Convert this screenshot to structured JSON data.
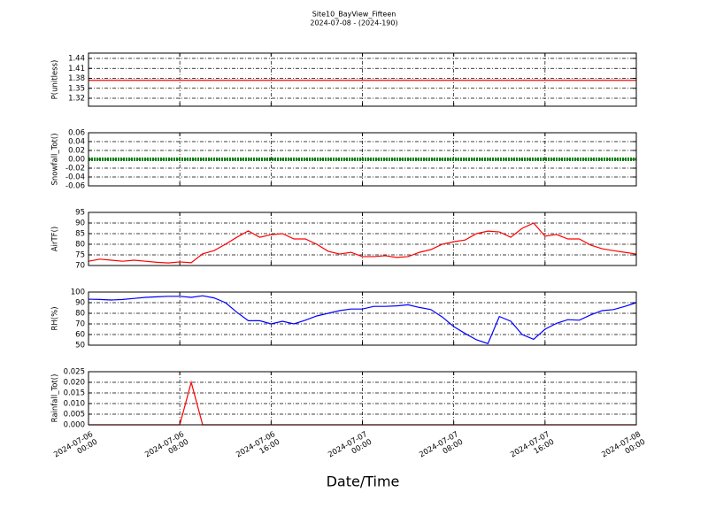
{
  "chart_data": [
    {
      "type": "line",
      "title": "Site10_BayView_Fifteen",
      "subtitle": "2024-07-08 - (2024-190)",
      "ylabel": "P(unitless)",
      "color": "#ff0000",
      "grid": true,
      "x": [
        "2024-07-06 00:00",
        "2024-07-06 01:00",
        "2024-07-06 02:00",
        "2024-07-06 03:00",
        "2024-07-06 04:00",
        "2024-07-06 05:00",
        "2024-07-06 06:00",
        "2024-07-06 07:00",
        "2024-07-06 08:00",
        "2024-07-06 09:00",
        "2024-07-06 10:00",
        "2024-07-06 11:00",
        "2024-07-06 12:00",
        "2024-07-06 13:00",
        "2024-07-06 14:00",
        "2024-07-06 15:00",
        "2024-07-06 16:00",
        "2024-07-06 17:00",
        "2024-07-06 18:00",
        "2024-07-06 19:00",
        "2024-07-06 20:00",
        "2024-07-06 21:00",
        "2024-07-06 22:00",
        "2024-07-06 23:00",
        "2024-07-07 00:00",
        "2024-07-07 01:00",
        "2024-07-07 02:00",
        "2024-07-07 03:00",
        "2024-07-07 04:00",
        "2024-07-07 05:00",
        "2024-07-07 06:00",
        "2024-07-07 07:00",
        "2024-07-07 08:00",
        "2024-07-07 09:00",
        "2024-07-07 10:00",
        "2024-07-07 11:00",
        "2024-07-07 12:00",
        "2024-07-07 13:00",
        "2024-07-07 14:00",
        "2024-07-07 15:00",
        "2024-07-07 16:00",
        "2024-07-07 17:00",
        "2024-07-07 18:00",
        "2024-07-07 19:00",
        "2024-07-07 20:00",
        "2024-07-07 21:00",
        "2024-07-07 22:00",
        "2024-07-07 23:00",
        "2024-07-08 00:00"
      ],
      "values": [
        1.374,
        1.374,
        1.374,
        1.374,
        1.374,
        1.374,
        1.374,
        1.374,
        1.374,
        1.374,
        1.374,
        1.374,
        1.374,
        1.374,
        1.374,
        1.374,
        1.374,
        1.374,
        1.374,
        1.374,
        1.374,
        1.374,
        1.374,
        1.374,
        1.374,
        1.374,
        1.374,
        1.374,
        1.374,
        1.374,
        1.374,
        1.374,
        1.374,
        1.374,
        1.374,
        1.374,
        1.374,
        1.374,
        1.374,
        1.374,
        1.374,
        1.374,
        1.374,
        1.374,
        1.374,
        1.374,
        1.374,
        1.374,
        1.374
      ],
      "ylim": [
        1.296,
        1.456
      ],
      "yticks": [
        1.32,
        1.35,
        1.38,
        1.41,
        1.44
      ],
      "xlim": [
        "2024-07-06 00:00",
        "2024-07-08 00:00"
      ],
      "xticks": [
        "2024-07-06 00:00",
        "2024-07-06 08:00",
        "2024-07-06 16:00",
        "2024-07-07 00:00",
        "2024-07-07 08:00",
        "2024-07-07 16:00",
        "2024-07-08 00:00"
      ]
    },
    {
      "type": "line",
      "ylabel": "Snowfall_Tot()",
      "color": "#008000",
      "grid": true,
      "x": [
        "2024-07-06 00:00",
        "2024-07-06 01:00",
        "2024-07-06 02:00",
        "2024-07-06 03:00",
        "2024-07-06 04:00",
        "2024-07-06 05:00",
        "2024-07-06 06:00",
        "2024-07-06 07:00",
        "2024-07-06 08:00",
        "2024-07-06 09:00",
        "2024-07-06 10:00",
        "2024-07-06 11:00",
        "2024-07-06 12:00",
        "2024-07-06 13:00",
        "2024-07-06 14:00",
        "2024-07-06 15:00",
        "2024-07-06 16:00",
        "2024-07-06 17:00",
        "2024-07-06 18:00",
        "2024-07-06 19:00",
        "2024-07-06 20:00",
        "2024-07-06 21:00",
        "2024-07-06 22:00",
        "2024-07-06 23:00",
        "2024-07-07 00:00",
        "2024-07-07 01:00",
        "2024-07-07 02:00",
        "2024-07-07 03:00",
        "2024-07-07 04:00",
        "2024-07-07 05:00",
        "2024-07-07 06:00",
        "2024-07-07 07:00",
        "2024-07-07 08:00",
        "2024-07-07 09:00",
        "2024-07-07 10:00",
        "2024-07-07 11:00",
        "2024-07-07 12:00",
        "2024-07-07 13:00",
        "2024-07-07 14:00",
        "2024-07-07 15:00",
        "2024-07-07 16:00",
        "2024-07-07 17:00",
        "2024-07-07 18:00",
        "2024-07-07 19:00",
        "2024-07-07 20:00",
        "2024-07-07 21:00",
        "2024-07-07 22:00",
        "2024-07-07 23:00",
        "2024-07-08 00:00"
      ],
      "values": [
        0,
        0,
        0,
        0,
        0,
        0,
        0,
        0,
        0,
        0,
        0,
        0,
        0,
        0,
        0,
        0,
        0,
        0,
        0,
        0,
        0,
        0,
        0,
        0,
        0,
        0,
        0,
        0,
        0,
        0,
        0,
        0,
        0,
        0,
        0,
        0,
        0,
        0,
        0,
        0,
        0,
        0,
        0,
        0,
        0,
        0,
        0,
        0,
        0
      ],
      "ylim": [
        -0.06,
        0.06
      ],
      "yticks": [
        -0.06,
        -0.04,
        -0.02,
        {
          "value": 0,
          "label": "0.00"
        },
        0.02,
        0.04,
        0.06
      ],
      "xlim": [
        "2024-07-06 00:00",
        "2024-07-08 00:00"
      ],
      "xticks": [
        "2024-07-06 00:00",
        "2024-07-06 08:00",
        "2024-07-06 16:00",
        "2024-07-07 00:00",
        "2024-07-07 08:00",
        "2024-07-07 16:00",
        "2024-07-08 00:00"
      ]
    },
    {
      "type": "line",
      "ylabel": "AirTF()",
      "color": "#ff0000",
      "grid": true,
      "x": [
        "2024-07-06 00:00",
        "2024-07-06 01:00",
        "2024-07-06 02:00",
        "2024-07-06 03:00",
        "2024-07-06 04:00",
        "2024-07-06 05:00",
        "2024-07-06 06:00",
        "2024-07-06 07:00",
        "2024-07-06 08:00",
        "2024-07-06 09:00",
        "2024-07-06 10:00",
        "2024-07-06 11:00",
        "2024-07-06 12:00",
        "2024-07-06 13:00",
        "2024-07-06 14:00",
        "2024-07-06 15:00",
        "2024-07-06 16:00",
        "2024-07-06 17:00",
        "2024-07-06 18:00",
        "2024-07-06 19:00",
        "2024-07-06 20:00",
        "2024-07-06 21:00",
        "2024-07-06 22:00",
        "2024-07-06 23:00",
        "2024-07-07 00:00",
        "2024-07-07 01:00",
        "2024-07-07 02:00",
        "2024-07-07 03:00",
        "2024-07-07 04:00",
        "2024-07-07 05:00",
        "2024-07-07 06:00",
        "2024-07-07 07:00",
        "2024-07-07 08:00",
        "2024-07-07 09:00",
        "2024-07-07 10:00",
        "2024-07-07 11:00",
        "2024-07-07 12:00",
        "2024-07-07 13:00",
        "2024-07-07 14:00",
        "2024-07-07 15:00",
        "2024-07-07 16:00",
        "2024-07-07 17:00",
        "2024-07-07 18:00",
        "2024-07-07 19:00",
        "2024-07-07 20:00",
        "2024-07-07 21:00",
        "2024-07-07 22:00",
        "2024-07-07 23:00",
        "2024-07-08 00:00"
      ],
      "values": [
        72,
        73,
        72.5,
        72,
        72.5,
        72,
        71.5,
        71.2,
        71.7,
        71.3,
        75.5,
        77,
        80,
        83.3,
        86.3,
        83.3,
        84.5,
        85,
        82.5,
        82.5,
        80,
        76.7,
        75.4,
        76.2,
        74.2,
        74.2,
        74.6,
        73.8,
        74.2,
        76.2,
        77.5,
        80,
        81.2,
        82,
        85,
        86.2,
        85.8,
        83.3,
        87.5,
        90,
        83.8,
        84.6,
        82.5,
        82.5,
        79.6,
        77.9,
        77,
        76.2,
        75.4
      ],
      "ylim": [
        70,
        95
      ],
      "yticks": [
        70,
        75,
        80,
        85,
        90,
        95
      ],
      "xlim": [
        "2024-07-06 00:00",
        "2024-07-08 00:00"
      ],
      "xticks": [
        "2024-07-06 00:00",
        "2024-07-06 08:00",
        "2024-07-06 16:00",
        "2024-07-07 00:00",
        "2024-07-07 08:00",
        "2024-07-07 16:00",
        "2024-07-08 00:00"
      ]
    },
    {
      "type": "line",
      "ylabel": "RH(%)",
      "color": "#0000ff",
      "grid": true,
      "x": [
        "2024-07-06 00:00",
        "2024-07-06 01:00",
        "2024-07-06 02:00",
        "2024-07-06 03:00",
        "2024-07-06 04:00",
        "2024-07-06 05:00",
        "2024-07-06 06:00",
        "2024-07-06 07:00",
        "2024-07-06 08:00",
        "2024-07-06 09:00",
        "2024-07-06 10:00",
        "2024-07-06 11:00",
        "2024-07-06 12:00",
        "2024-07-06 13:00",
        "2024-07-06 14:00",
        "2024-07-06 15:00",
        "2024-07-06 16:00",
        "2024-07-06 17:00",
        "2024-07-06 18:00",
        "2024-07-06 19:00",
        "2024-07-06 20:00",
        "2024-07-06 21:00",
        "2024-07-06 22:00",
        "2024-07-06 23:00",
        "2024-07-07 00:00",
        "2024-07-07 01:00",
        "2024-07-07 02:00",
        "2024-07-07 03:00",
        "2024-07-07 04:00",
        "2024-07-07 05:00",
        "2024-07-07 06:00",
        "2024-07-07 07:00",
        "2024-07-07 08:00",
        "2024-07-07 09:00",
        "2024-07-07 10:00",
        "2024-07-07 11:00",
        "2024-07-07 12:00",
        "2024-07-07 13:00",
        "2024-07-07 14:00",
        "2024-07-07 15:00",
        "2024-07-07 16:00",
        "2024-07-07 17:00",
        "2024-07-07 18:00",
        "2024-07-07 19:00",
        "2024-07-07 20:00",
        "2024-07-07 21:00",
        "2024-07-07 22:00",
        "2024-07-07 23:00",
        "2024-07-08 00:00"
      ],
      "values": [
        93.3,
        93,
        92.5,
        93,
        94,
        95,
        95.5,
        96,
        96,
        95,
        96.5,
        94.5,
        90,
        81,
        73,
        73,
        70,
        72.5,
        70,
        73.5,
        77.5,
        80,
        82.5,
        84,
        84,
        86.5,
        86.5,
        87,
        88,
        85.5,
        83.5,
        76.5,
        67.5,
        61,
        55,
        51.5,
        77,
        72.5,
        60,
        55.5,
        65,
        70.5,
        74,
        73.5,
        78.5,
        82.5,
        83.5,
        86.5,
        90
      ],
      "ylim": [
        50,
        100
      ],
      "yticks": [
        50,
        60,
        70,
        80,
        90,
        100
      ],
      "xlim": [
        "2024-07-06 00:00",
        "2024-07-08 00:00"
      ],
      "xticks": [
        "2024-07-06 00:00",
        "2024-07-06 08:00",
        "2024-07-06 16:00",
        "2024-07-07 00:00",
        "2024-07-07 08:00",
        "2024-07-07 16:00",
        "2024-07-08 00:00"
      ]
    },
    {
      "type": "line",
      "ylabel": "Rainfall_Tot()",
      "xlabel": "Date/Time",
      "color": "#ff0000",
      "grid": true,
      "x": [
        "2024-07-06 00:00",
        "2024-07-06 01:00",
        "2024-07-06 02:00",
        "2024-07-06 03:00",
        "2024-07-06 04:00",
        "2024-07-06 05:00",
        "2024-07-06 06:00",
        "2024-07-06 07:00",
        "2024-07-06 08:00",
        "2024-07-06 09:00",
        "2024-07-06 10:00",
        "2024-07-06 11:00",
        "2024-07-06 12:00",
        "2024-07-06 13:00",
        "2024-07-06 14:00",
        "2024-07-06 15:00",
        "2024-07-06 16:00",
        "2024-07-06 17:00",
        "2024-07-06 18:00",
        "2024-07-06 19:00",
        "2024-07-06 20:00",
        "2024-07-06 21:00",
        "2024-07-06 22:00",
        "2024-07-06 23:00",
        "2024-07-07 00:00",
        "2024-07-07 01:00",
        "2024-07-07 02:00",
        "2024-07-07 03:00",
        "2024-07-07 04:00",
        "2024-07-07 05:00",
        "2024-07-07 06:00",
        "2024-07-07 07:00",
        "2024-07-07 08:00",
        "2024-07-07 09:00",
        "2024-07-07 10:00",
        "2024-07-07 11:00",
        "2024-07-07 12:00",
        "2024-07-07 13:00",
        "2024-07-07 14:00",
        "2024-07-07 15:00",
        "2024-07-07 16:00",
        "2024-07-07 17:00",
        "2024-07-07 18:00",
        "2024-07-07 19:00",
        "2024-07-07 20:00",
        "2024-07-07 21:00",
        "2024-07-07 22:00",
        "2024-07-07 23:00",
        "2024-07-08 00:00"
      ],
      "values": [
        0,
        0,
        0,
        0,
        0,
        0,
        0,
        0,
        0,
        0.02,
        0,
        0,
        0,
        0,
        0,
        0,
        0,
        0,
        0,
        0,
        0,
        0,
        0,
        0,
        0,
        0,
        0,
        0,
        0,
        0,
        0,
        0,
        0,
        0,
        0,
        0,
        0,
        0,
        0,
        0,
        0,
        0,
        0,
        0,
        0,
        0,
        0,
        0,
        0
      ],
      "ylim": [
        0,
        0.025
      ],
      "yticks": [
        {
          "value": 0,
          "label": "0.000"
        },
        0.005,
        {
          "value": 0.01,
          "label": "0.010"
        },
        0.015,
        {
          "value": 0.02,
          "label": "0.020"
        },
        0.025
      ],
      "xlim": [
        "2024-07-06 00:00",
        "2024-07-08 00:00"
      ],
      "xticks": [
        {
          "value": "2024-07-06 00:00",
          "label": "2024-07-06\n00:00"
        },
        {
          "value": "2024-07-06 08:00",
          "label": "2024-07-06\n08:00"
        },
        {
          "value": "2024-07-06 16:00",
          "label": "2024-07-06\n16:00"
        },
        {
          "value": "2024-07-07 00:00",
          "label": "2024-07-07\n00:00"
        },
        {
          "value": "2024-07-07 08:00",
          "label": "2024-07-07\n08:00"
        },
        {
          "value": "2024-07-07 16:00",
          "label": "2024-07-07\n16:00"
        },
        {
          "value": "2024-07-08 00:00",
          "label": "2024-07-08\n00:00"
        }
      ]
    }
  ]
}
